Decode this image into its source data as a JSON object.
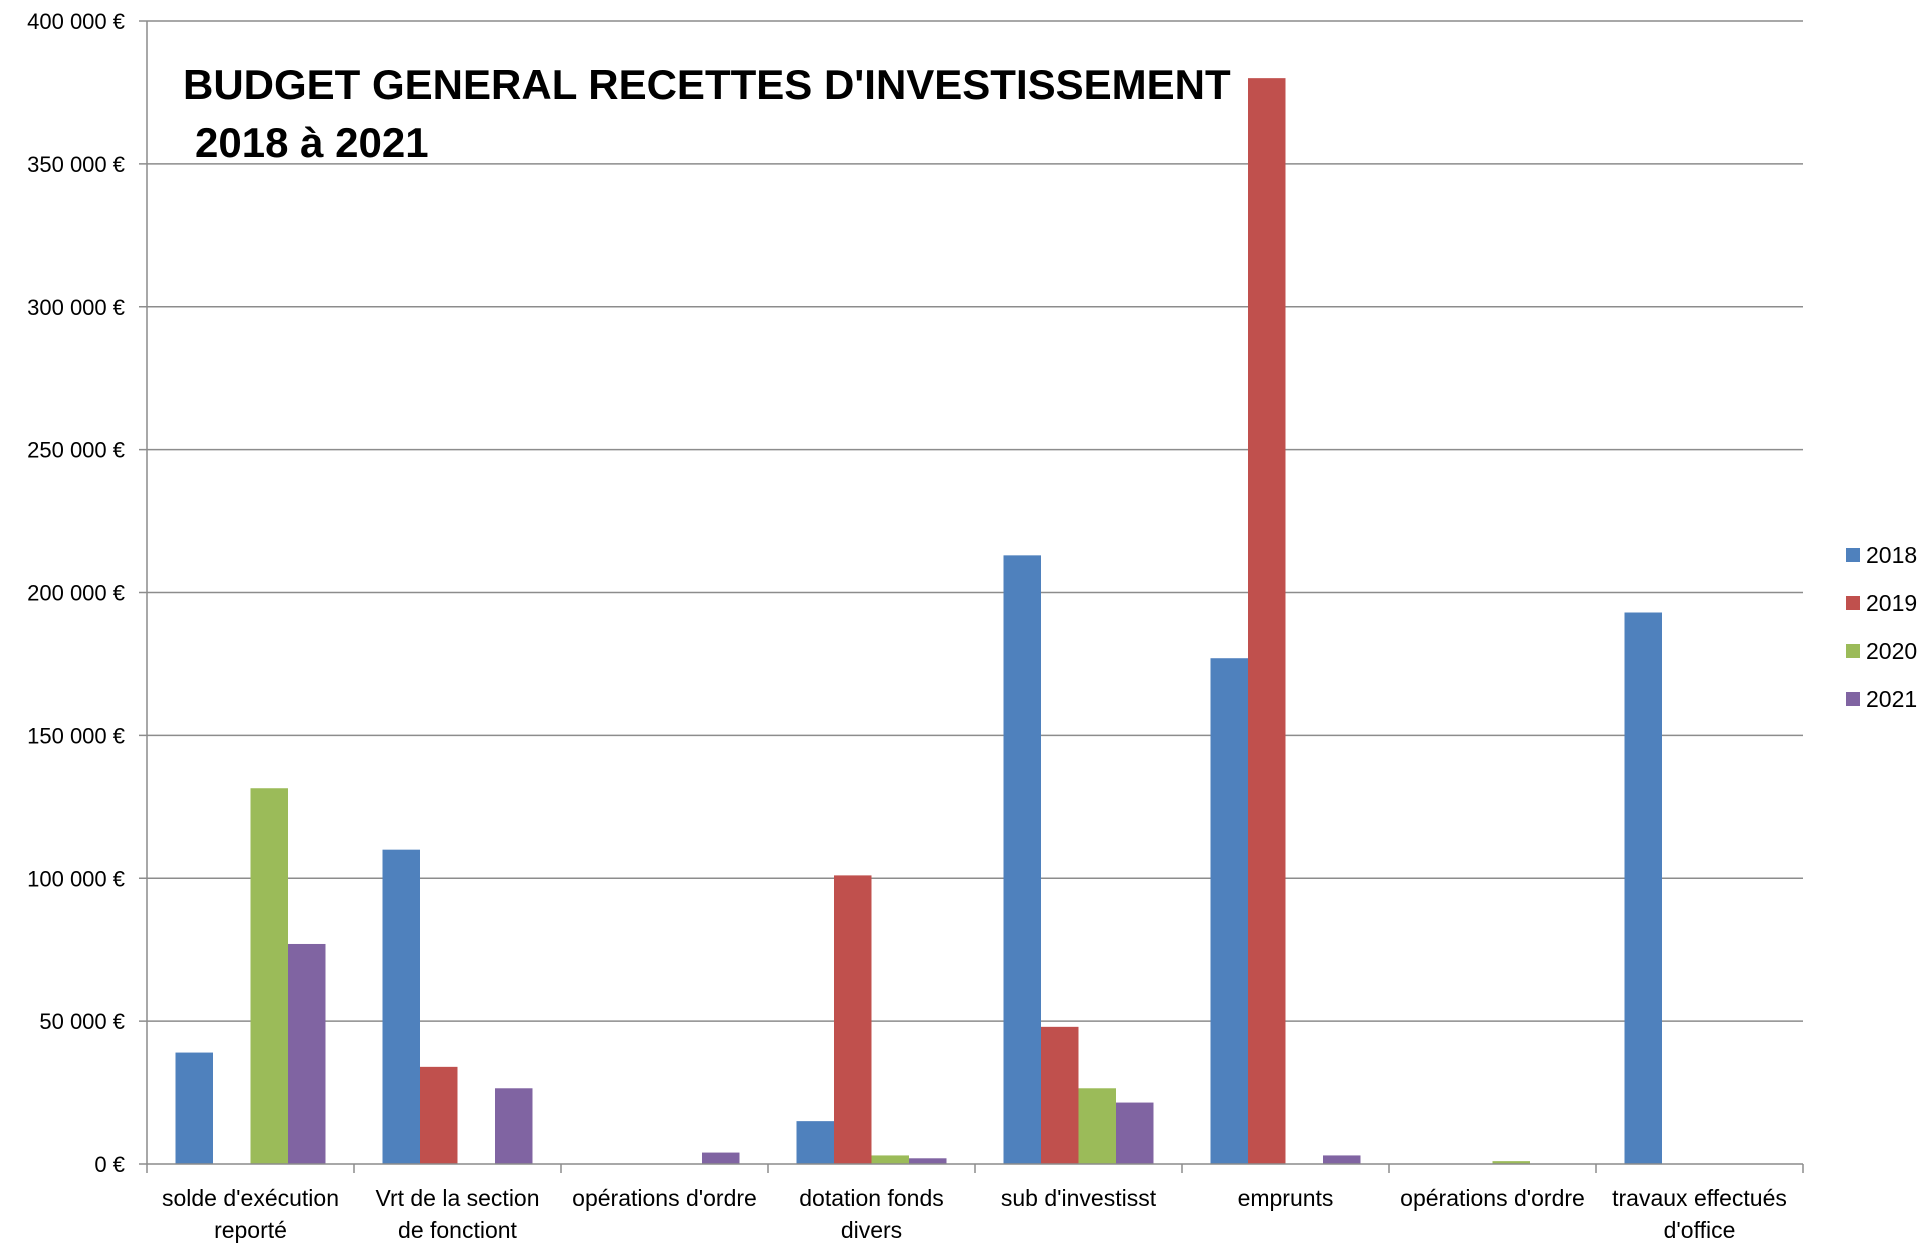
{
  "chart_data": {
    "type": "bar",
    "title_line1": "BUDGET GENERAL RECETTES D'INVESTISSEMENT",
    "title_line2": "2018 à 2021",
    "xlabel": "",
    "ylabel": "",
    "ylim": [
      0,
      400000
    ],
    "y_ticks": [
      0,
      50000,
      100000,
      150000,
      200000,
      250000,
      300000,
      350000,
      400000
    ],
    "y_tick_labels": [
      "0 €",
      "50 000 €",
      "100 000 €",
      "150 000 €",
      "200 000 €",
      "250 000 €",
      "300 000 €",
      "350 000 €",
      "400 000 €"
    ],
    "grid": true,
    "legend_position": "right",
    "categories": [
      [
        "solde d'exécution",
        "reporté"
      ],
      [
        "Vrt de la section",
        "de fonctiont"
      ],
      [
        "opérations d'ordre"
      ],
      [
        "dotation fonds",
        "divers"
      ],
      [
        "sub d'investisst"
      ],
      [
        "emprunts"
      ],
      [
        "opérations d'ordre"
      ],
      [
        "travaux effectués",
        "d'office"
      ]
    ],
    "series": [
      {
        "name": "2018",
        "color": "#4F81BD",
        "values": [
          39000,
          110000,
          0,
          15000,
          213000,
          177000,
          0,
          193000
        ]
      },
      {
        "name": "2019",
        "color": "#C0504D",
        "values": [
          0,
          34000,
          0,
          101000,
          48000,
          380000,
          0,
          0
        ]
      },
      {
        "name": "2020",
        "color": "#9BBB59",
        "values": [
          131500,
          0,
          0,
          3000,
          26500,
          0,
          1000,
          0
        ]
      },
      {
        "name": "2021",
        "color": "#8064A2",
        "values": [
          77000,
          26500,
          4000,
          2000,
          21500,
          3000,
          0,
          0
        ]
      }
    ]
  }
}
